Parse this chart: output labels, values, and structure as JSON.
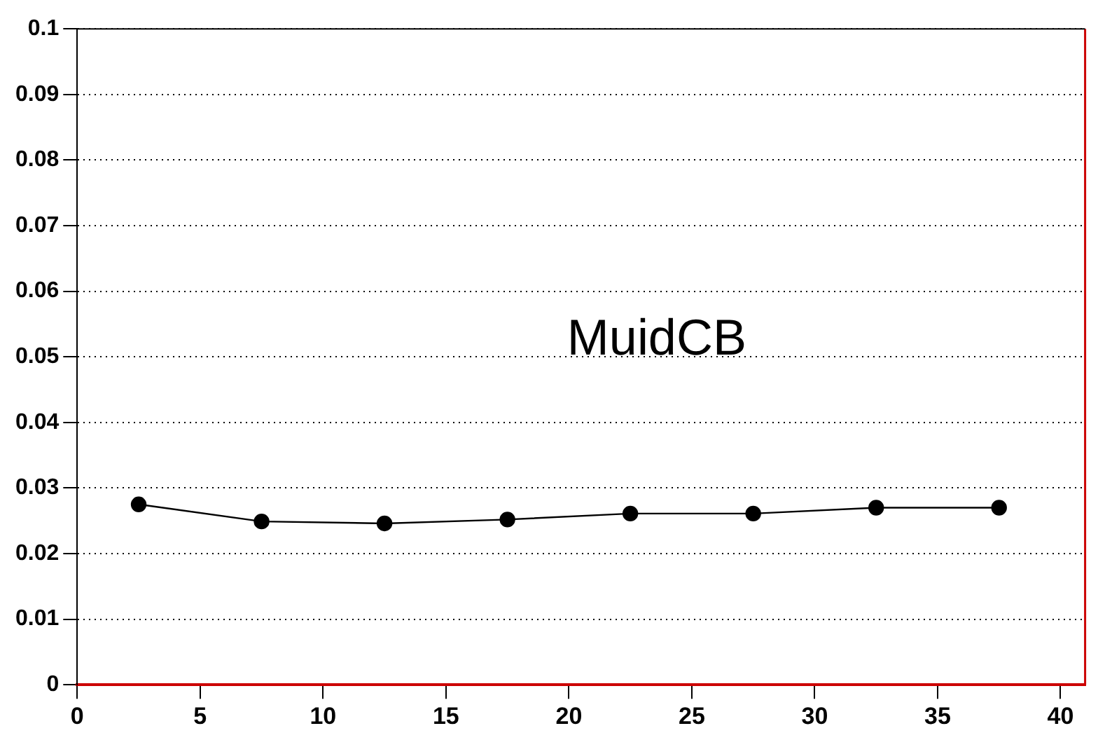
{
  "chart_data": {
    "type": "line",
    "x": [
      2.5,
      7.5,
      12.5,
      17.5,
      22.5,
      27.5,
      32.5,
      37.5
    ],
    "series": [
      {
        "color": "#000000",
        "values": [
          0.0275,
          0.0249,
          0.0246,
          0.0252,
          0.0261,
          0.0261,
          0.027,
          0.027
        ]
      }
    ],
    "xlim": [
      0,
      41
    ],
    "xticks": [
      0,
      5,
      10,
      15,
      20,
      25,
      30,
      35,
      40
    ],
    "ylim": [
      0,
      0.1
    ],
    "yticks": [
      0,
      0.01,
      0.02,
      0.03,
      0.04,
      0.05,
      0.06,
      0.07,
      0.08,
      0.09,
      0.1
    ],
    "grid": "y",
    "marker": "circle",
    "line_style": "solid",
    "legend": false,
    "annotations": [
      "MuidCB"
    ]
  }
}
